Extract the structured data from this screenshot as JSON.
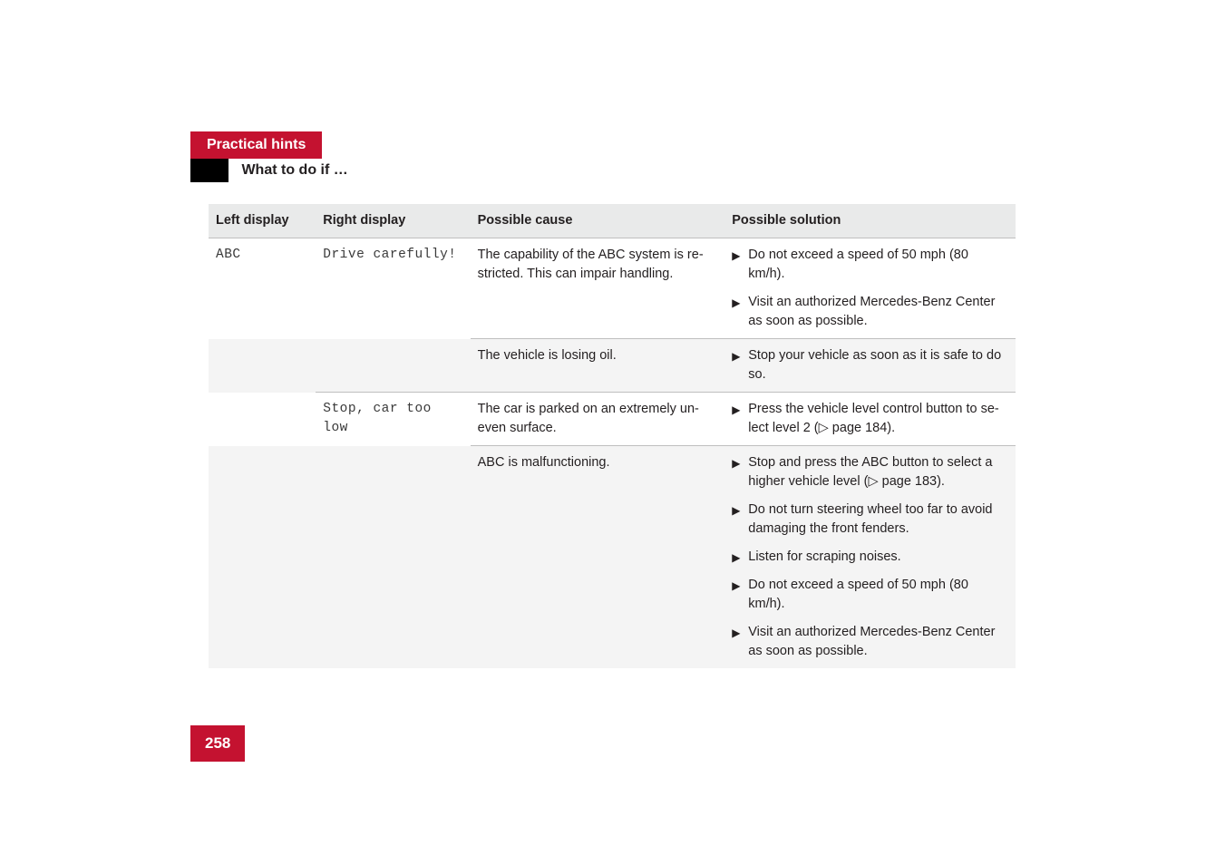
{
  "colors": {
    "brand_red": "#c41230",
    "black": "#000000",
    "text": "#231f20",
    "stripe": "#f4f4f4",
    "header_bg": "#e9eaea",
    "rule": "#bfbfbf"
  },
  "header": {
    "section_title": "Practical hints",
    "sub_title": "What to do if …"
  },
  "page_number": "258",
  "table": {
    "columns": {
      "c1": "Left display",
      "c2": "Right display",
      "c3": "Possible cause",
      "c4": "Possible solution"
    },
    "rows": {
      "r1": {
        "left": "ABC",
        "right": "Drive carefully!",
        "cause": "The capability of the ABC system is re-stricted. This can impair handling.",
        "sol1": "Do not exceed a speed of 50 mph (80 km/h).",
        "sol2": "Visit an authorized Mercedes-Benz Center as soon as possible."
      },
      "r2": {
        "cause": "The vehicle is losing oil.",
        "sol1": "Stop your vehicle as soon as it is safe to do so."
      },
      "r3": {
        "right": "Stop, car too low",
        "cause": "The car is parked on an extremely un-even surface.",
        "sol1": "Press the vehicle level control button to se-lect level 2 (▷ page 184)."
      },
      "r4": {
        "cause": "ABC is malfunctioning.",
        "sol1": "Stop and press the ABC button to select a higher vehicle level (▷ page 183).",
        "sol2": "Do not turn steering wheel too far to avoid damaging the front fenders.",
        "sol3": "Listen for scraping noises.",
        "sol4": "Do not exceed a speed of 50 mph (80 km/h).",
        "sol5": "Visit an authorized Mercedes-Benz Center as soon as possible."
      }
    }
  },
  "glyphs": {
    "triangle": "▶"
  }
}
